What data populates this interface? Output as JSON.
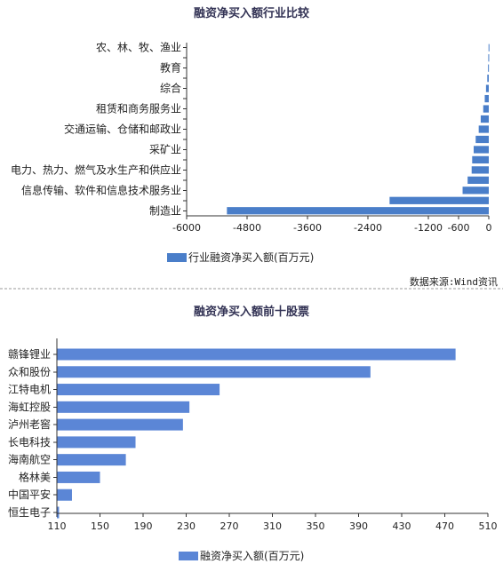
{
  "chart_data": [
    {
      "type": "bar",
      "orientation": "horizontal",
      "title": "融资净买入额行业比较",
      "categories": [
        "农、林、牧、渔业",
        "",
        "教育",
        "",
        "综合",
        "",
        "租赁和商务服务业",
        "",
        "交通运输、仓储和邮政业",
        "",
        "采矿业",
        "",
        "电力、热力、燃气及水生产和供应业",
        "",
        "信息传输、软件和信息技术服务业",
        "",
        "制造业"
      ],
      "values": [
        -5,
        -10,
        -15,
        -30,
        -55,
        -80,
        -110,
        -160,
        -200,
        -260,
        -300,
        -330,
        -340,
        -420,
        -520,
        -1970,
        -5200
      ],
      "series": [
        {
          "name": "行业融资净买入额(百万元)",
          "color": "#4a7ec9"
        }
      ],
      "xlim": [
        -6000,
        0
      ],
      "xticks": [
        -6000,
        -4800,
        -3600,
        -2400,
        -1200,
        -600,
        0
      ],
      "legend_position": "bottom",
      "grid": false
    },
    {
      "type": "bar",
      "orientation": "horizontal",
      "title": "融资净买入额前十股票",
      "categories": [
        "赣锋锂业",
        "众和股份",
        "江特电机",
        "海虹控股",
        "泸州老窖",
        "长电科技",
        "海南航空",
        "格林美",
        "中国平安",
        "恒生电子"
      ],
      "values": [
        480,
        401,
        261,
        233,
        227,
        183,
        174,
        150,
        124,
        112
      ],
      "series": [
        {
          "name": "融资净买入额(百万元)",
          "color": "#5b86d6"
        }
      ],
      "xlim": [
        110,
        510
      ],
      "xticks": [
        110,
        150,
        190,
        230,
        270,
        310,
        350,
        390,
        430,
        470,
        510
      ],
      "legend_position": "bottom",
      "grid": false
    }
  ],
  "source_text": "数据来源:Wind资讯"
}
